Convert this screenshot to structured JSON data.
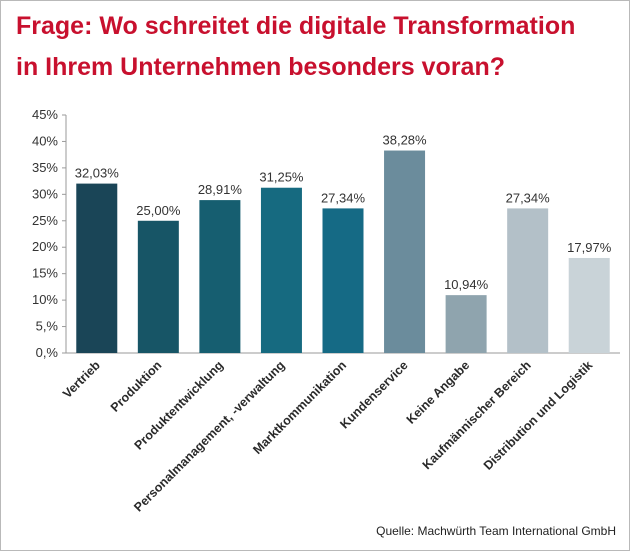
{
  "title": {
    "line1": "Frage: Wo schreitet die digitale Transformation",
    "line2": "in Ihrem Unternehmen besonders voran?"
  },
  "source": "Quelle: Machwürth Team International GmbH",
  "colors": {
    "title": "#c8102e",
    "bars": [
      "#1a4557",
      "#175566",
      "#165e70",
      "#166a80",
      "#156a85",
      "#6b8c9c",
      "#8fa4ae",
      "#b3c0c8",
      "#c9d3d8"
    ]
  },
  "chart_data": {
    "type": "bar",
    "title": "Frage: Wo schreitet die digitale Transformation in Ihrem Unternehmen besonders voran?",
    "xlabel": "",
    "ylabel": "",
    "ylim": [
      0,
      45
    ],
    "grid": false,
    "yticks": [
      "0,%",
      "5,%",
      "10%",
      "15%",
      "20%",
      "25%",
      "30%",
      "35%",
      "40%",
      "45%"
    ],
    "ytick_values": [
      0,
      5,
      10,
      15,
      20,
      25,
      30,
      35,
      40,
      45
    ],
    "categories": [
      "Vertrieb",
      "Produktion",
      "Produktentwicklung",
      "Personalmanagement, -verwaltung",
      "Marktkommunikation",
      "Kundenservice",
      "Keine Angabe",
      "Kaufmännischer Bereich",
      "Distribution und Logistik"
    ],
    "values": [
      32.03,
      25.0,
      28.91,
      31.25,
      27.34,
      38.28,
      10.94,
      27.34,
      17.97
    ],
    "value_labels": [
      "32,03%",
      "25,00%",
      "28,91%",
      "31,25%",
      "27,34%",
      "38,28%",
      "10,94%",
      "27,34%",
      "17,97%"
    ]
  }
}
